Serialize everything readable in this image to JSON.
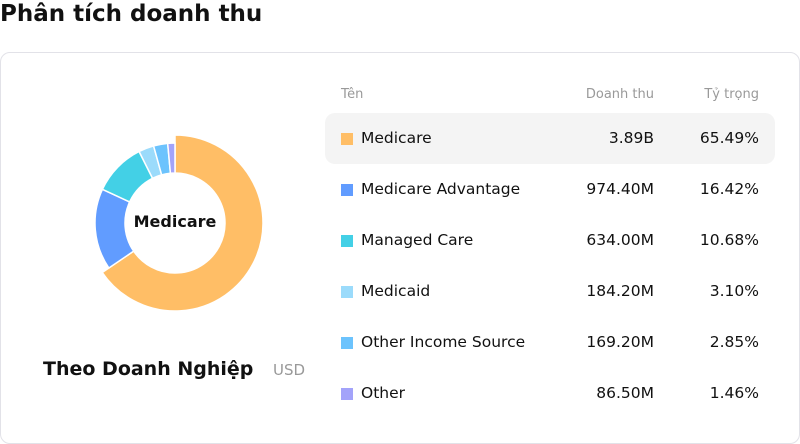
{
  "page_title": "Phân tích doanh thu",
  "chart_center_label": "Medicare",
  "subtitle": "Theo Doanh Nghiệp",
  "unit": "USD",
  "table": {
    "headers": {
      "name": "Tên",
      "revenue": "Doanh thu",
      "share": "Tỷ trọng"
    },
    "rows": [
      {
        "name": "Medicare",
        "revenue": "3.89B",
        "share": "65.49%",
        "color": "#ffbe66"
      },
      {
        "name": "Medicare Advantage",
        "revenue": "974.40M",
        "share": "16.42%",
        "color": "#619cff"
      },
      {
        "name": "Managed Care",
        "revenue": "634.00M",
        "share": "10.68%",
        "color": "#43d0e6"
      },
      {
        "name": "Medicaid",
        "revenue": "184.20M",
        "share": "3.10%",
        "color": "#9bdbfb"
      },
      {
        "name": "Other Income Source",
        "revenue": "169.20M",
        "share": "2.85%",
        "color": "#6cc3fd"
      },
      {
        "name": "Other",
        "revenue": "86.50M",
        "share": "1.46%",
        "color": "#a3a3fa"
      }
    ]
  },
  "chart_data": {
    "type": "pie",
    "donut": true,
    "categories": [
      "Medicare",
      "Medicare Advantage",
      "Managed Care",
      "Medicaid",
      "Other Income Source",
      "Other"
    ],
    "values": [
      65.49,
      16.42,
      10.68,
      3.1,
      2.85,
      1.46
    ],
    "highlighted": "Medicare"
  }
}
